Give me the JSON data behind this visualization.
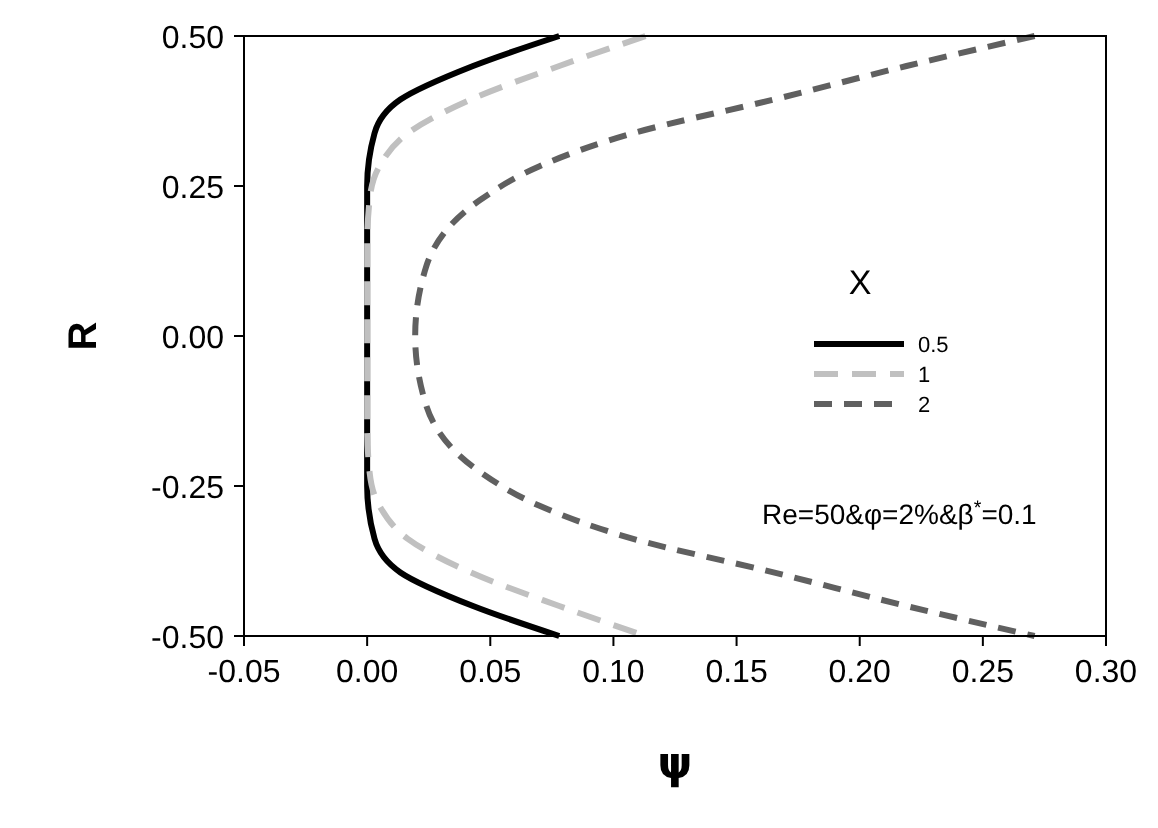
{
  "chart_data": {
    "type": "line",
    "xlabel": "ψ",
    "ylabel": "R",
    "legend_title": "X",
    "legend": "right",
    "grid": false,
    "xlim": [
      -0.05,
      0.3
    ],
    "ylim": [
      -0.5,
      0.5
    ],
    "xticks": [
      {
        "value": -0.05,
        "label": "-0.05"
      },
      {
        "value": 0,
        "label": "0.00"
      },
      {
        "value": 0.05,
        "label": "0.05"
      },
      {
        "value": 0.1,
        "label": "0.10"
      },
      {
        "value": 0.15,
        "label": "0.15"
      },
      {
        "value": 0.2,
        "label": "0.20"
      },
      {
        "value": 0.25,
        "label": "0.25"
      },
      {
        "value": 0.3,
        "label": "0.30"
      }
    ],
    "yticks": [
      {
        "value": -0.5,
        "label": "-0.50"
      },
      {
        "value": -0.25,
        "label": "-0.25"
      },
      {
        "value": 0,
        "label": "0.00"
      },
      {
        "value": 0.25,
        "label": "0.25"
      },
      {
        "value": 0.5,
        "label": "0.50"
      }
    ],
    "annotations": [
      "Re=50&φ=2%&β$^{*}$=0.1"
    ],
    "series": [
      {
        "name": "0.5",
        "color": "#000000",
        "line_style": "solid",
        "x": [
          0.078,
          0.043,
          0.0135,
          0.003,
          0,
          0,
          0,
          0,
          0,
          0.003,
          0.0135,
          0.043,
          0.078
        ],
        "values": [
          0.5,
          0.45,
          0.394,
          0.338,
          0.25,
          0.15,
          0,
          -0.15,
          -0.25,
          -0.338,
          -0.394,
          -0.45,
          -0.5
        ]
      },
      {
        "name": "1",
        "color": "#c0c0c0",
        "line_style": "dashed",
        "x": [
          0.113,
          0.078,
          0.042,
          0.0165,
          0.005,
          0.001,
          0,
          0,
          0,
          0.001,
          0.005,
          0.0165,
          0.042,
          0.078,
          0.113
        ],
        "values": [
          0.5,
          0.45,
          0.394,
          0.338,
          0.283,
          0.227,
          0.15,
          0,
          -0.15,
          -0.227,
          -0.283,
          -0.338,
          -0.394,
          -0.45,
          -0.5
        ]
      },
      {
        "name": "2",
        "color": "#606060",
        "line_style": "dashed",
        "x": [
          0.271,
          0.219,
          0.165,
          0.108,
          0.07,
          0.046,
          0.024,
          0.0195,
          0.024,
          0.046,
          0.07,
          0.108,
          0.165,
          0.219,
          0.271
        ],
        "values": [
          0.5,
          0.45,
          0.394,
          0.338,
          0.283,
          0.227,
          0.116,
          0,
          -0.116,
          -0.227,
          -0.283,
          -0.338,
          -0.394,
          -0.45,
          -0.5
        ]
      }
    ]
  }
}
